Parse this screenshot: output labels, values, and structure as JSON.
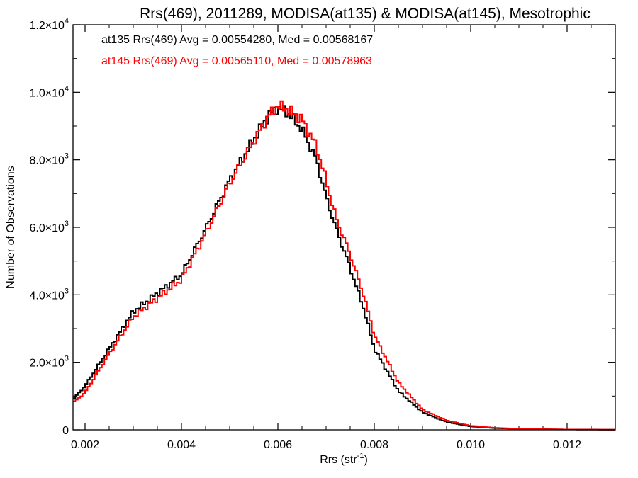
{
  "chart_data": {
    "type": "line",
    "title": "Rrs(469), 2011289, MODISA(at135) & MODISA(at145), Mesotrophic",
    "xlabel": "Rrs (str",
    "xlabel_sup": "-1",
    "xlabel_close": ")",
    "ylabel": "Number of Observations",
    "xlim": [
      0.00175,
      0.013
    ],
    "ylim": [
      0,
      12000
    ],
    "xticks": [
      0.002,
      0.004,
      0.006,
      0.008,
      0.01,
      0.012
    ],
    "xtick_labels": [
      "0.002",
      "0.004",
      "0.006",
      "0.008",
      "0.010",
      "0.012"
    ],
    "yticks": [
      0,
      2000,
      4000,
      6000,
      8000,
      10000,
      12000
    ],
    "ytick_labels": [
      {
        "base": "0",
        "exp": ""
      },
      {
        "base": "2.0×10",
        "exp": "3"
      },
      {
        "base": "4.0×10",
        "exp": "3"
      },
      {
        "base": "6.0×10",
        "exp": "3"
      },
      {
        "base": "8.0×10",
        "exp": "3"
      },
      {
        "base": "1.0×10",
        "exp": "4"
      },
      {
        "base": "1.2×10",
        "exp": "4"
      }
    ],
    "grid": false,
    "legend_position": "top-left",
    "series": [
      {
        "name": "at135 Rrs(469) Avg = 0.00554280, Med = 0.00568167",
        "color": "#000000",
        "x": [
          0.00175,
          0.002,
          0.0025,
          0.003,
          0.0035,
          0.004,
          0.0045,
          0.005,
          0.0055,
          0.0058,
          0.006,
          0.0062,
          0.0065,
          0.0068,
          0.007,
          0.0072,
          0.0075,
          0.0078,
          0.008,
          0.0085,
          0.009,
          0.0095,
          0.01,
          0.0105,
          0.011,
          0.012,
          0.013
        ],
        "y": [
          900,
          1300,
          2400,
          3500,
          4050,
          4600,
          5950,
          7400,
          8600,
          9300,
          9550,
          9400,
          8900,
          8000,
          6900,
          6000,
          4800,
          3500,
          2400,
          1150,
          520,
          230,
          100,
          50,
          30,
          10,
          5
        ]
      },
      {
        "name": "at145 Rrs(469) Avg = 0.00565110, Med = 0.00578963",
        "color": "#ff0000",
        "x": [
          0.00175,
          0.002,
          0.0025,
          0.003,
          0.0035,
          0.004,
          0.0045,
          0.005,
          0.0055,
          0.0058,
          0.006,
          0.0062,
          0.0065,
          0.0068,
          0.007,
          0.0072,
          0.0075,
          0.0078,
          0.008,
          0.0085,
          0.009,
          0.0095,
          0.01,
          0.0105,
          0.011,
          0.012,
          0.013
        ],
        "y": [
          800,
          1100,
          2250,
          3350,
          3900,
          4450,
          5800,
          7300,
          8550,
          9300,
          9600,
          9500,
          9200,
          8400,
          7400,
          6300,
          5200,
          3900,
          2800,
          1400,
          600,
          280,
          120,
          60,
          30,
          10,
          5
        ]
      }
    ]
  }
}
